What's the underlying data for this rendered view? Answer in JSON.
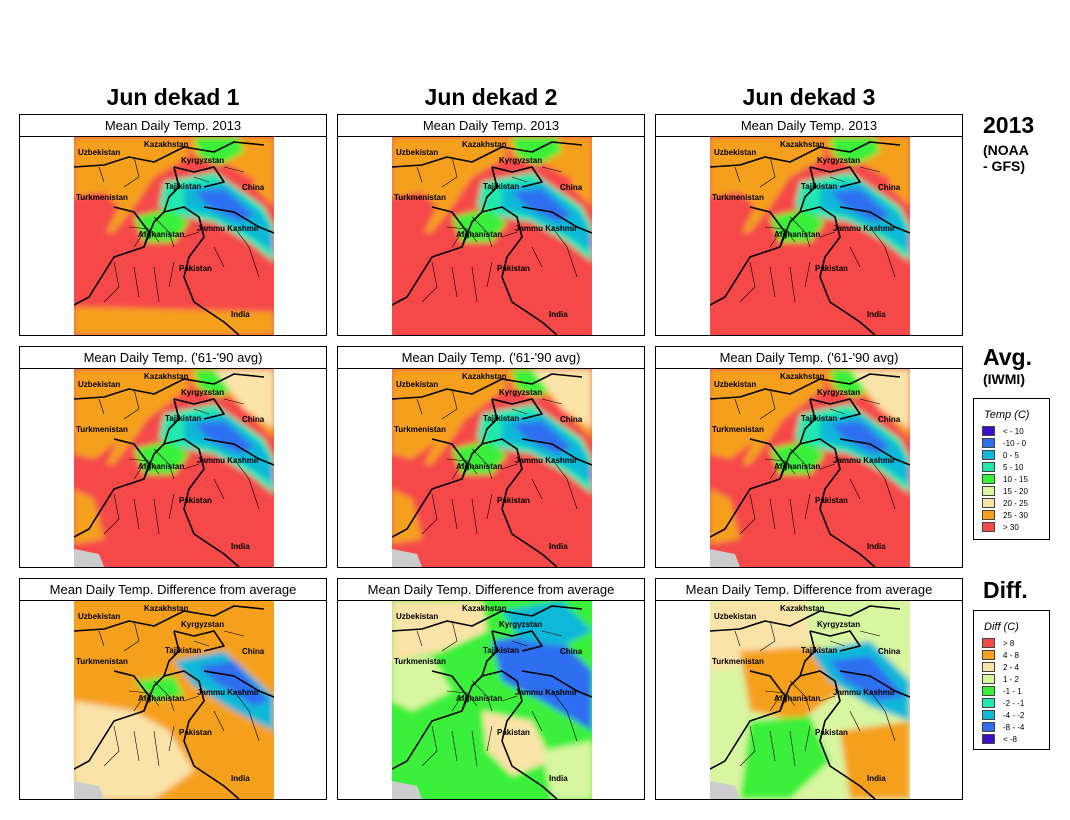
{
  "columns": [
    {
      "title": "Jun dekad 1"
    },
    {
      "title": "Jun dekad 2"
    },
    {
      "title": "Jun dekad 3"
    }
  ],
  "rows": [
    {
      "panel_title": "Mean Daily Temp. 2013",
      "label": "2013",
      "sublabel": "(NOAA\n- GFS)"
    },
    {
      "panel_title": "Mean Daily Temp. ('61-'90 avg)",
      "label": "Avg.",
      "sublabel": "(IWMI)"
    },
    {
      "panel_title": "Mean Daily Temp. Difference from average",
      "label": "Diff.",
      "sublabel": ""
    }
  ],
  "map_labels": {
    "kazakhstan": "Kazakhstan",
    "uzbekistan": "Uzbekistan",
    "kyrgyzstan": "Kyrgyzstan",
    "tajikistan": "Tajikistan",
    "turkmenistan": "Turkmenistan",
    "china": "China",
    "afghanistan": "Afghanistan",
    "jammu_kashmir": "Jammu Kashmir",
    "pakistan": "Pakistan",
    "india": "India"
  },
  "temp_legend": {
    "title": "Temp (C)",
    "items": [
      {
        "label": "< - 10",
        "color": "#3a0fc8"
      },
      {
        "label": "-10 -   0",
        "color": "#2f6ef0"
      },
      {
        "label": "0 -   5",
        "color": "#10b8d8"
      },
      {
        "label": "5 -  10",
        "color": "#22e8b0"
      },
      {
        "label": "10 -  15",
        "color": "#3af03a"
      },
      {
        "label": "15 -  20",
        "color": "#d8f5a0"
      },
      {
        "label": "20 -  25",
        "color": "#fae3a8"
      },
      {
        "label": "25 -  30",
        "color": "#f5a01e"
      },
      {
        "label": "> 30",
        "color": "#f54a4a"
      }
    ]
  },
  "diff_legend": {
    "title": "Diff (C)",
    "items": [
      {
        "label": "> 8",
        "color": "#f54a4a"
      },
      {
        "label": "4 -  8",
        "color": "#f5a01e"
      },
      {
        "label": "2 -  4",
        "color": "#fae3a8"
      },
      {
        "label": "1 -  2",
        "color": "#d8f5a0"
      },
      {
        "label": "-1 -  1",
        "color": "#3af03a"
      },
      {
        "label": "-2 - -1",
        "color": "#22e8b0"
      },
      {
        "label": "-4 - -2",
        "color": "#10b8d8"
      },
      {
        "label": "-8 - -4",
        "color": "#2f6ef0"
      },
      {
        "label": "< -8",
        "color": "#3a0fc8"
      }
    ]
  },
  "colors": {
    "hot": "#f54a4a",
    "warm": "#f5a01e",
    "mild": "#fae3a8",
    "pale_green": "#d8f5a0",
    "green": "#3af03a",
    "teal": "#22e8b0",
    "cyan": "#10b8d8",
    "blue": "#2f6ef0",
    "no_data": "#cccccc"
  }
}
